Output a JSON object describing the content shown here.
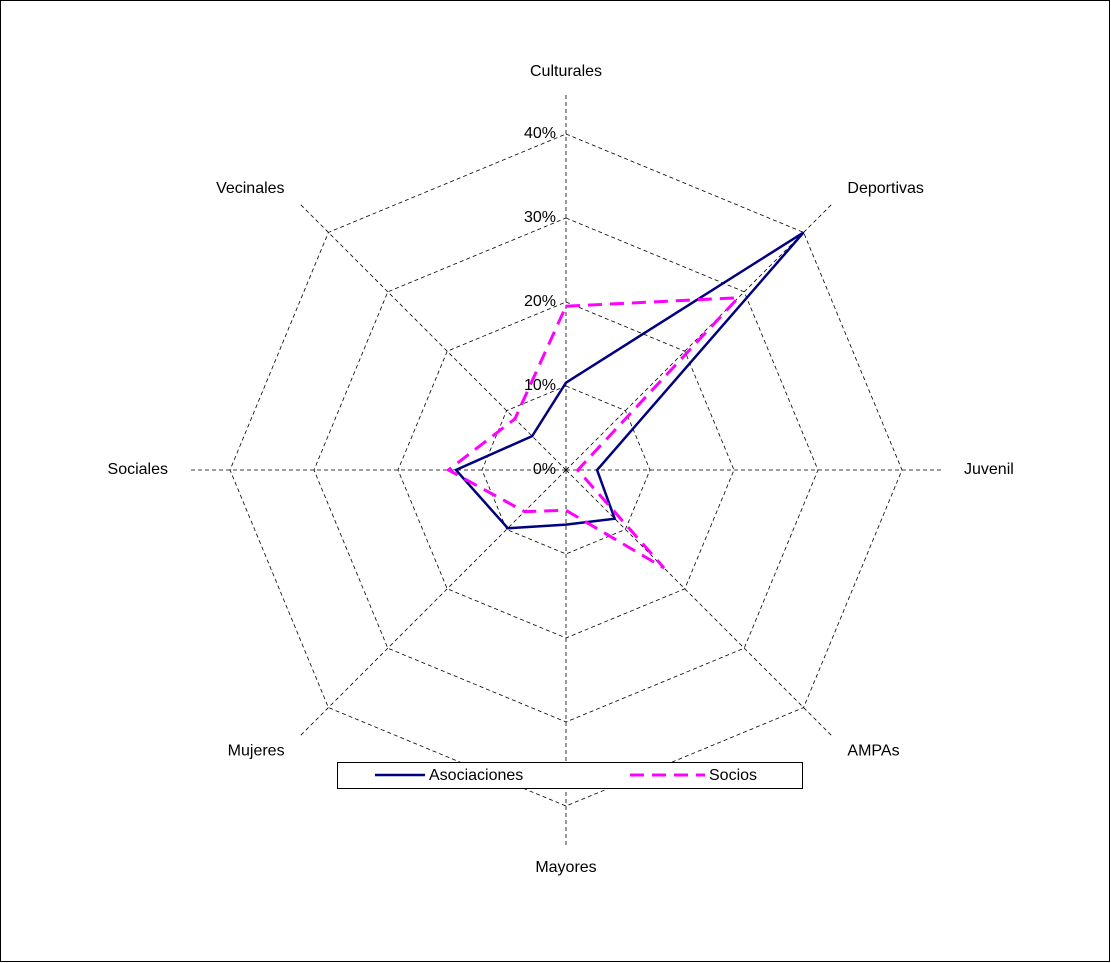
{
  "chart_data": {
    "type": "radar",
    "categories": [
      "Culturales",
      "Deportivas",
      "Juvenil",
      "AMPAs",
      "Mayores",
      "Mujeres",
      "Sociales",
      "Vecinales"
    ],
    "series": [
      {
        "name": "Asociaciones",
        "color": "#000080",
        "dash": false,
        "values": [
          10.4,
          40,
          3.7,
          8.2,
          6.5,
          9.8,
          13.1,
          5.7
        ]
      },
      {
        "name": "Socios",
        "color": "#ff00ff",
        "dash": true,
        "values": [
          19.5,
          29,
          1.4,
          16.5,
          4.8,
          7,
          14,
          8.6
        ]
      }
    ],
    "ylim": [
      0,
      40
    ],
    "yticks": [
      {
        "value": 0,
        "label": "0%"
      },
      {
        "value": 10,
        "label": "10%"
      },
      {
        "value": 20,
        "label": "20%"
      },
      {
        "value": 30,
        "label": "30%"
      },
      {
        "value": 40,
        "label": "40%"
      }
    ],
    "grid": true,
    "legend": "bottom"
  }
}
